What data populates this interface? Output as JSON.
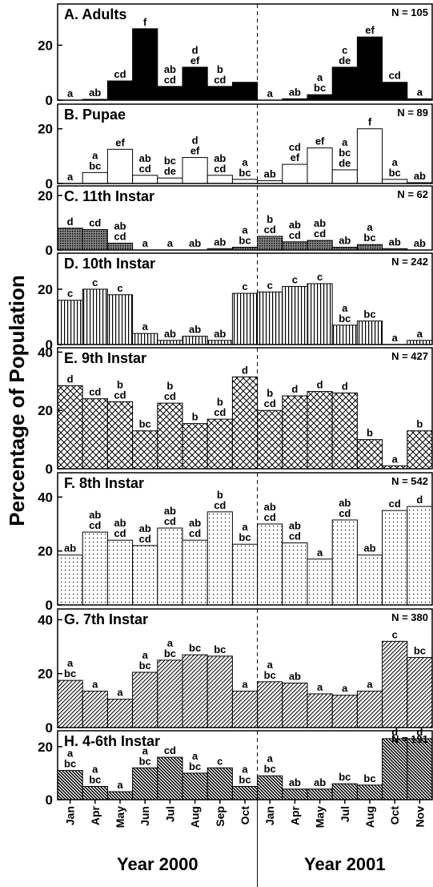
{
  "figure": {
    "ylabel": "Percentage of Population",
    "x_groups": [
      {
        "name": "Year 2000",
        "categories": [
          "Jan",
          "Apr",
          "May",
          "Jun",
          "Jul",
          "Aug",
          "Sep",
          "Oct"
        ]
      },
      {
        "name": "Year 2001",
        "categories": [
          "Jan",
          "Apr",
          "May",
          "Jul",
          "Aug",
          "Oct",
          "Nov"
        ]
      }
    ]
  },
  "chart_data": [
    {
      "type": "bar",
      "title": "A. Adults",
      "note": "N = 105",
      "pattern": "solid",
      "ylim": [
        0,
        35
      ],
      "yticks": [
        0,
        20
      ],
      "values": [
        0,
        0.3,
        7,
        26,
        5,
        12,
        5,
        6.5,
        0,
        0.5,
        2,
        12,
        23,
        6.5,
        0.5
      ],
      "letters": [
        [
          "a"
        ],
        [
          "ab"
        ],
        [
          "cd"
        ],
        [
          "f"
        ],
        [
          "ab",
          "cd"
        ],
        [
          "d",
          "ef"
        ],
        [
          "b",
          "cd"
        ],
        null,
        [
          "a"
        ],
        [
          "ab"
        ],
        [
          "a",
          "bc"
        ],
        [
          "c",
          "de"
        ],
        [
          "ef"
        ],
        [
          "cd"
        ],
        [
          "a"
        ]
      ]
    },
    {
      "type": "bar",
      "title": "B. Pupae",
      "note": "N = 89",
      "pattern": "none",
      "ylim": [
        0,
        29
      ],
      "yticks": [
        0,
        20
      ],
      "values": [
        0,
        4,
        12.5,
        3,
        2,
        9.5,
        3,
        1.5,
        1,
        7,
        13,
        5,
        20,
        1.5,
        0.3
      ],
      "letters": [
        [
          "a"
        ],
        [
          "a",
          "bc"
        ],
        [
          "ef"
        ],
        [
          "ab",
          "cd"
        ],
        [
          "bc",
          "de"
        ],
        [
          "d",
          "ef"
        ],
        [
          "ab",
          "cd"
        ],
        [
          "a",
          "bc"
        ],
        [
          "ab"
        ],
        [
          "cd",
          "ef"
        ],
        [
          "ef"
        ],
        [
          "a",
          "bc",
          "de"
        ],
        [
          "f"
        ],
        [
          "a",
          "bc"
        ],
        [
          "ab"
        ]
      ]
    },
    {
      "type": "bar",
      "title": "C. 11th Instar",
      "note": "N = 62",
      "pattern": "dense-dots",
      "ylim": [
        0,
        23.5
      ],
      "yticks": [
        0,
        20
      ],
      "values": [
        8,
        7.5,
        2.5,
        0,
        0,
        0,
        0.5,
        1,
        5,
        3,
        3.5,
        1,
        2,
        0.5,
        0
      ],
      "letters": [
        [
          "d"
        ],
        [
          "cd"
        ],
        [
          "ab",
          "cd"
        ],
        [
          "a"
        ],
        [
          "a"
        ],
        [
          "ab"
        ],
        [
          "ab"
        ],
        [
          "a",
          "bc"
        ],
        [
          "b",
          "cd"
        ],
        [
          "ab",
          "cd"
        ],
        [
          "ab",
          "cd"
        ],
        [
          "ab"
        ],
        [
          "a",
          "bc"
        ],
        [
          "ab"
        ],
        [
          "ab"
        ]
      ]
    },
    {
      "type": "bar",
      "title": "D. 10th Instar",
      "note": "N = 242",
      "pattern": "vertical",
      "ylim": [
        0,
        33
      ],
      "yticks": [
        0,
        20
      ],
      "values": [
        16,
        20,
        18,
        4,
        1.5,
        3,
        1.5,
        18.5,
        19,
        21,
        22,
        7,
        8.5,
        0,
        1.5
      ],
      "letters": [
        [
          "c"
        ],
        [
          "c"
        ],
        [
          "c"
        ],
        [
          "a"
        ],
        [
          "ab"
        ],
        [
          "ab"
        ],
        [
          "ab"
        ],
        [
          "c"
        ],
        [
          "c"
        ],
        [
          "c"
        ],
        [
          "c"
        ],
        [
          "a",
          "bc"
        ],
        [
          "bc"
        ],
        [
          "a"
        ],
        [
          "a"
        ]
      ]
    },
    {
      "type": "bar",
      "title": "E. 9th Instar",
      "note": "N = 427",
      "pattern": "crosshatch",
      "ylim": [
        0,
        41.5
      ],
      "yticks": [
        0,
        20,
        40
      ],
      "values": [
        28.5,
        24,
        23,
        13,
        22.5,
        15.5,
        17,
        31.5,
        20,
        25,
        26.5,
        26,
        10,
        1,
        13
      ],
      "letters": [
        [
          "d"
        ],
        [
          "cd"
        ],
        [
          "b",
          "cd"
        ],
        [
          "bc"
        ],
        [
          "b",
          "cd"
        ],
        [
          "b"
        ],
        [
          "b",
          "cd"
        ],
        [
          "d"
        ],
        [
          "b",
          "cd"
        ],
        [
          "d"
        ],
        [
          "d"
        ],
        [
          "d"
        ],
        [
          "b"
        ],
        [
          "a"
        ],
        [
          "b"
        ]
      ]
    },
    {
      "type": "bar",
      "title": "F. 8th Instar",
      "note": "N = 542",
      "pattern": "dots",
      "ylim": [
        0,
        49
      ],
      "yticks": [
        0,
        20,
        40
      ],
      "values": [
        18.5,
        27,
        24,
        22,
        28.5,
        24,
        34.5,
        22.5,
        30,
        23,
        17,
        31.5,
        18.5,
        35,
        36.5
      ],
      "letters": [
        [
          "ab"
        ],
        [
          "ab",
          "cd"
        ],
        [
          "ab",
          "cd"
        ],
        [
          "ab",
          "cd"
        ],
        [
          "ab",
          "cd"
        ],
        [
          "ab",
          "cd"
        ],
        [
          "b",
          "cd"
        ],
        [
          "a",
          "bc"
        ],
        [
          "ab",
          "cd"
        ],
        [
          "ab",
          "cd"
        ],
        [
          "a"
        ],
        [
          "ab",
          "cd"
        ],
        [
          "ab"
        ],
        [
          "cd"
        ],
        [
          "d"
        ]
      ]
    },
    {
      "type": "bar",
      "title": "G. 7th Instar",
      "note": "N = 380",
      "pattern": "diagonal",
      "ylim": [
        0,
        44
      ],
      "yticks": [
        0,
        20,
        40
      ],
      "values": [
        17.5,
        13.5,
        10.5,
        20.5,
        25,
        27,
        26.5,
        13.5,
        17,
        16.5,
        12.5,
        12,
        13.5,
        32,
        26
      ],
      "letters": [
        [
          "a",
          "bc"
        ],
        [
          "a"
        ],
        [
          "a"
        ],
        [
          "a",
          "bc"
        ],
        [
          "a",
          "bc"
        ],
        [
          "bc"
        ],
        [
          "bc"
        ],
        [
          "a"
        ],
        [
          "a",
          "bc"
        ],
        [
          "ab"
        ],
        [
          "a"
        ],
        [
          "a"
        ],
        [
          "a"
        ],
        [
          "c"
        ],
        [
          "bc"
        ]
      ]
    },
    {
      "type": "bar",
      "title": "H. 4-6th Instar",
      "note": "N = 191",
      "pattern": "dense-diagonal",
      "ylim": [
        0,
        26
      ],
      "yticks": [
        0,
        20
      ],
      "values": [
        11,
        5,
        3,
        12,
        16,
        10,
        12,
        5,
        9,
        4,
        4,
        6,
        5.5,
        23,
        23
      ],
      "letters": [
        [
          "a",
          "bc"
        ],
        [
          "a",
          "bc"
        ],
        [
          "a"
        ],
        [
          "a",
          "bc"
        ],
        [
          "cd"
        ],
        [
          "a",
          "bc"
        ],
        [
          "c"
        ],
        [
          "a",
          "bc"
        ],
        [
          "a",
          "bc"
        ],
        [
          "ab"
        ],
        [
          "ab"
        ],
        [
          "bc"
        ],
        [
          "bc"
        ],
        [
          "d"
        ],
        [
          "d"
        ]
      ]
    }
  ]
}
